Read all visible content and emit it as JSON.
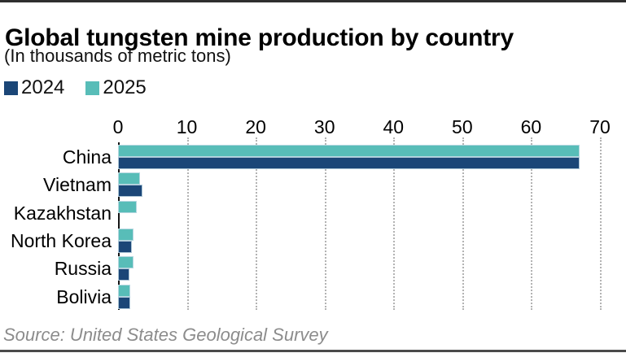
{
  "header": {
    "title": "Global tungsten mine production by country",
    "subtitle": "(In thousands of metric tons)"
  },
  "legend": [
    {
      "label": "2024",
      "color": "#1b4677"
    },
    {
      "label": "2025",
      "color": "#58bdb8"
    }
  ],
  "chart_data": {
    "type": "bar",
    "orientation": "horizontal",
    "title": "Global tungsten mine production by country",
    "subtitle": "(In thousands of metric tons)",
    "categories": [
      "China",
      "Vietnam",
      "Kazakhstan",
      "North Korea",
      "Russia",
      "Bolivia"
    ],
    "series": [
      {
        "name": "2024",
        "color": "#1b4677",
        "values": [
          67,
          3.5,
          0,
          2.0,
          1.6,
          1.8
        ]
      },
      {
        "name": "2025",
        "color": "#58bdb8",
        "values": [
          67,
          3.2,
          2.7,
          2.2,
          2.2,
          1.8
        ]
      }
    ],
    "row_order": [
      "2025",
      "2024"
    ],
    "xlim": [
      0,
      70
    ],
    "xticks": [
      0,
      10,
      20,
      30,
      40,
      50,
      60,
      70
    ],
    "xlabel": "",
    "ylabel": "",
    "grid": "dotted-vertical",
    "legend_position": "top-left",
    "axis_position": "top"
  },
  "footer": {
    "source": "Source: United States Geological Survey"
  }
}
